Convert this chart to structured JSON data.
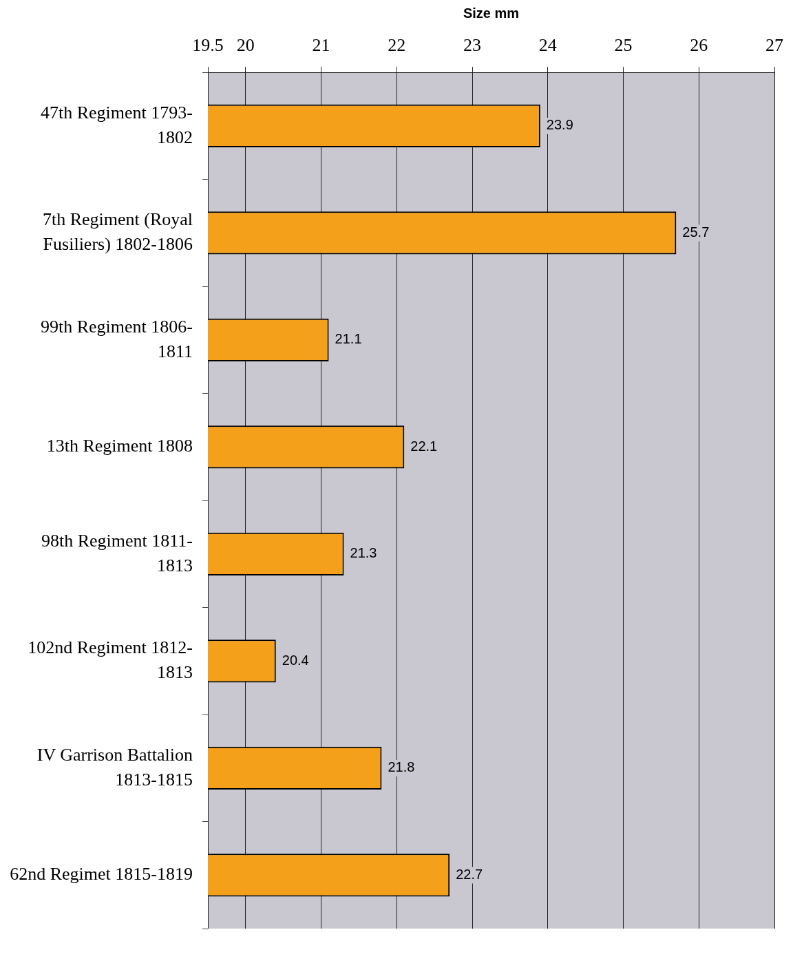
{
  "chart_data": {
    "type": "bar",
    "orientation": "horizontal",
    "xlabel": "Size mm",
    "categories": [
      "47th Regiment 1793-1802",
      "7th Regiment (Royal Fusiliers) 1802-1806",
      "99th Regiment 1806-1811",
      "13th Regiment 1808",
      "98th Regiment 1811-1813",
      "102nd Regiment 1812-1813",
      "IV Garrison Battalion 1813-1815",
      "62nd Regimet 1815-1819"
    ],
    "values": [
      23.9,
      25.7,
      21.1,
      22.1,
      21.3,
      20.4,
      21.8,
      22.7
    ],
    "color": "#f5a01a",
    "xlim": [
      19.5,
      27
    ],
    "xticks": [
      19.5,
      20,
      21,
      22,
      23,
      24,
      25,
      26,
      27
    ],
    "grid": "x",
    "data_labels": true,
    "legend": false
  }
}
